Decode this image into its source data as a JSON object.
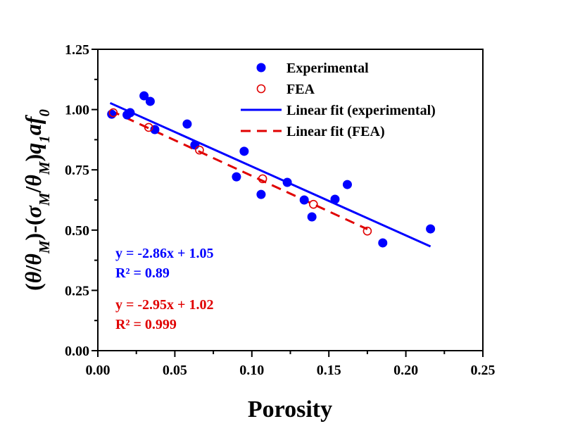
{
  "chart_data": {
    "type": "scatter",
    "title": "",
    "xlabel": "Porosity",
    "ylabel_parts": [
      {
        "t": "(",
        "s": ""
      },
      {
        "t": "θ",
        "s": "i"
      },
      {
        "t": "/",
        "s": ""
      },
      {
        "t": "θ",
        "s": "i"
      },
      {
        "t": "M",
        "s": "sub"
      },
      {
        "t": ")-(",
        "s": ""
      },
      {
        "t": "σ",
        "s": "i"
      },
      {
        "t": "M",
        "s": "sub"
      },
      {
        "t": "/",
        "s": ""
      },
      {
        "t": "θ",
        "s": "i"
      },
      {
        "t": "M",
        "s": "sub"
      },
      {
        "t": ")",
        "s": ""
      },
      {
        "t": "q",
        "s": "i"
      },
      {
        "t": "1",
        "s": "sub"
      },
      {
        "t": "af",
        "s": "i"
      },
      {
        "t": "0",
        "s": "sub"
      }
    ],
    "xlim": [
      0,
      0.25
    ],
    "ylim": [
      0,
      1.25
    ],
    "xticks": [
      "0.00",
      "0.05",
      "0.10",
      "0.15",
      "0.20",
      "0.25"
    ],
    "yticks": [
      "0.00",
      "0.25",
      "0.50",
      "0.75",
      "1.00",
      "1.25"
    ],
    "grid": false,
    "legend_placement": "top-right",
    "series": [
      {
        "name": "Experimental",
        "kind": "filled-circle",
        "color": "#0000ff",
        "x": [
          0.009,
          0.019,
          0.021,
          0.03,
          0.034,
          0.037,
          0.058,
          0.063,
          0.09,
          0.095,
          0.106,
          0.123,
          0.134,
          0.139,
          0.154,
          0.162,
          0.185,
          0.216
        ],
        "y": [
          0.981,
          0.978,
          0.987,
          1.057,
          1.034,
          0.917,
          0.94,
          0.853,
          0.721,
          0.827,
          0.648,
          0.698,
          0.625,
          0.555,
          0.628,
          0.689,
          0.447,
          0.505
        ]
      },
      {
        "name": "FEA",
        "kind": "open-circle",
        "color": "#e00000",
        "x": [
          0.01,
          0.033,
          0.066,
          0.107,
          0.14,
          0.175
        ],
        "y": [
          0.987,
          0.926,
          0.832,
          0.713,
          0.607,
          0.496
        ]
      },
      {
        "name": "Linear fit (experimental)",
        "kind": "solid-line",
        "color": "#0000ff",
        "slope": -2.86,
        "intercept": 1.05,
        "x_range": [
          0.008,
          0.216
        ]
      },
      {
        "name": "Linear fit (FEA)",
        "kind": "dashed-line",
        "color": "#e00000",
        "slope": -2.95,
        "intercept": 1.02,
        "x_range": [
          0.008,
          0.175
        ]
      }
    ],
    "annotations": [
      {
        "text": "y = -2.86x + 1.05",
        "color": "#0000ff"
      },
      {
        "text": "R² = 0.89",
        "color": "#0000ff"
      },
      {
        "text": "y = -2.95x + 1.02",
        "color": "#e00000"
      },
      {
        "text": "R² = 0.999",
        "color": "#e00000"
      }
    ]
  }
}
